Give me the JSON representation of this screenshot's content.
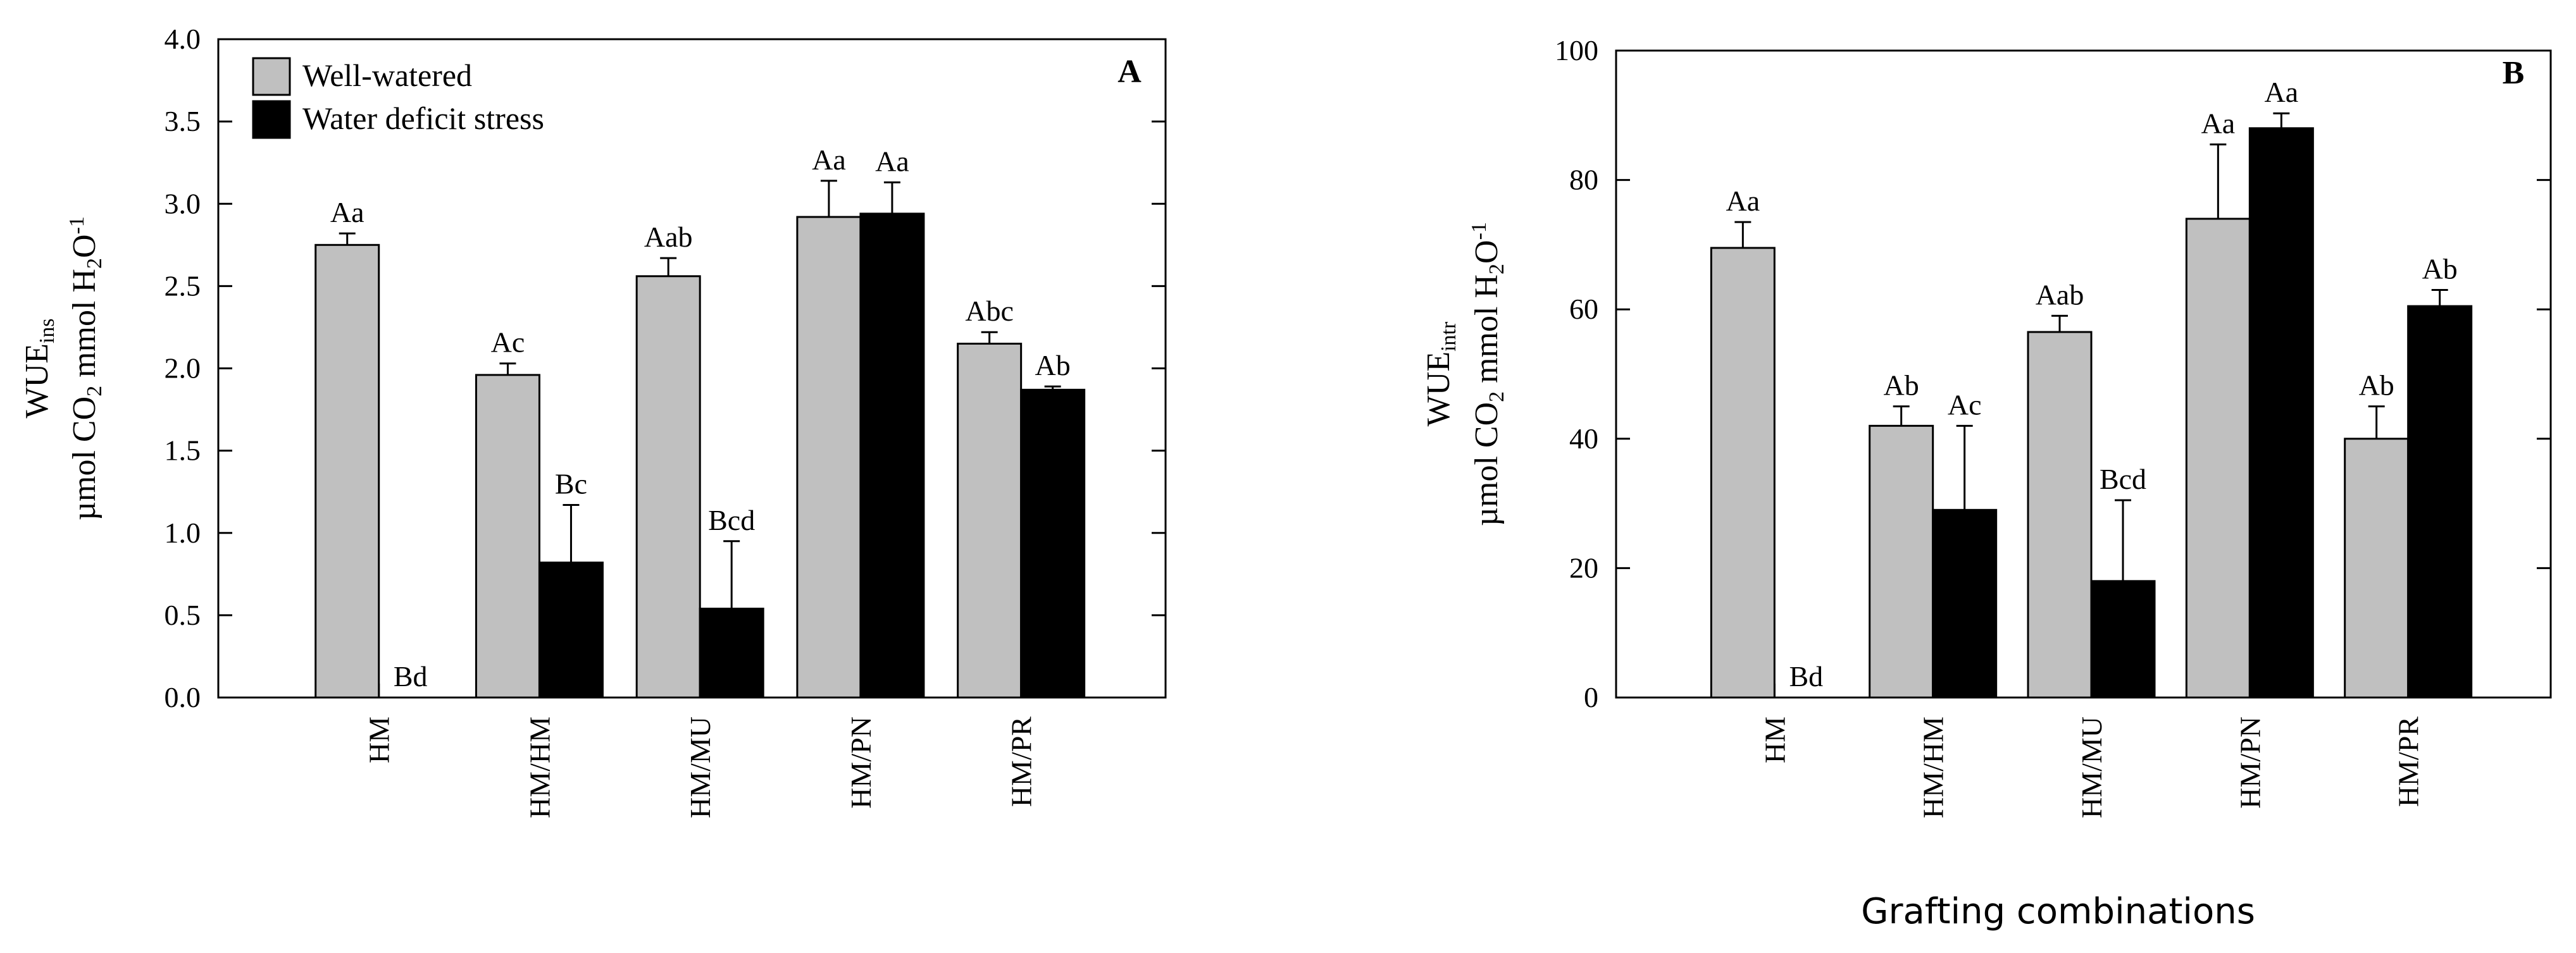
{
  "figure": {
    "xlabel": "Grafting combinations",
    "colors": {
      "well_watered": "#c0c0c0",
      "water_deficit": "#000000",
      "axis": "#000000"
    }
  },
  "chart_data": [
    {
      "type": "bar",
      "panel": "A",
      "ylabel_main": "WUE",
      "ylabel_sub": "ins",
      "ylabel_unit": [
        "µmol CO",
        "2",
        " mmol H",
        "2",
        "O",
        "-1"
      ],
      "ylim": [
        0,
        4.0
      ],
      "yticks": [
        "0.0",
        "0.5",
        "1.0",
        "1.5",
        "2.0",
        "2.5",
        "3.0",
        "3.5",
        "4.0"
      ],
      "categories": [
        "HM",
        "HM/HM",
        "HM/MU",
        "HM/PN",
        "HM/PR"
      ],
      "legend": {
        "placement": "top-left",
        "entries": [
          "Well-watered",
          "Water deficit stress"
        ]
      },
      "series": [
        {
          "name": "Well-watered",
          "values": [
            2.75,
            1.96,
            2.56,
            2.92,
            2.15
          ],
          "errors": [
            0.07,
            0.07,
            0.11,
            0.22,
            0.07
          ],
          "labels": [
            "Aa",
            "Ac",
            "Aab",
            "Aa",
            "Abc"
          ]
        },
        {
          "name": "Water deficit stress",
          "values": [
            0,
            0.82,
            0.54,
            2.94,
            1.87
          ],
          "errors": [
            0,
            0.35,
            0.41,
            0.19,
            0.02
          ],
          "labels": [
            "Bd",
            "Bc",
            "Bcd",
            "Aa",
            "Ab"
          ]
        }
      ]
    },
    {
      "type": "bar",
      "panel": "B",
      "ylabel_main": "WUE",
      "ylabel_sub": "intr",
      "ylabel_unit": [
        "µmol CO",
        "2",
        " mmol H",
        "2",
        "O",
        "-1"
      ],
      "ylim": [
        0,
        100
      ],
      "yticks": [
        "0",
        "20",
        "40",
        "60",
        "80",
        "100"
      ],
      "categories": [
        "HM",
        "HM/HM",
        "HM/MU",
        "HM/PN",
        "HM/PR"
      ],
      "series": [
        {
          "name": "Well-watered",
          "values": [
            69.5,
            42,
            56.5,
            74,
            40
          ],
          "errors": [
            4,
            3,
            2.5,
            11.5,
            5
          ],
          "labels": [
            "Aa",
            "Ab",
            "Aab",
            "Aa",
            "Ab"
          ]
        },
        {
          "name": "Water deficit stress",
          "values": [
            0,
            29,
            18,
            88,
            60.5
          ],
          "errors": [
            0,
            13,
            12.5,
            2.3,
            2.5
          ],
          "labels": [
            "Bd",
            "Ac",
            "Bcd",
            "Aa",
            "Ab"
          ]
        }
      ]
    }
  ]
}
